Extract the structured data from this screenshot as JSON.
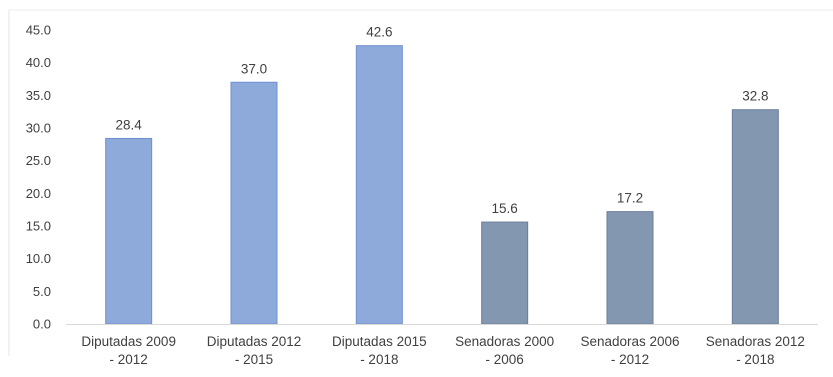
{
  "chart_data": {
    "type": "bar",
    "categories": [
      [
        "Diputadas 2009",
        "- 2012"
      ],
      [
        "Diputadas 2012",
        "- 2015"
      ],
      [
        "Diputadas 2015",
        "- 2018"
      ],
      [
        "Senadoras 2000",
        "- 2006"
      ],
      [
        "Senadoras 2006",
        "- 2012"
      ],
      [
        "Senadoras 2012",
        "- 2018"
      ]
    ],
    "values": [
      28.4,
      37.0,
      42.6,
      15.6,
      17.2,
      32.8
    ],
    "value_labels": [
      "28.4",
      "37.0",
      "42.6",
      "15.6",
      "17.2",
      "32.8"
    ],
    "y_ticks": [
      "0.0",
      "5.0",
      "10.0",
      "15.0",
      "20.0",
      "25.0",
      "30.0",
      "35.0",
      "40.0",
      "45.0"
    ],
    "ylim": [
      0,
      45
    ],
    "grid": false,
    "bar_colors": [
      "#8eaadb",
      "#8eaadb",
      "#8eaadb",
      "#8497b0",
      "#8497b0",
      "#8497b0"
    ],
    "bar_edge_colors": [
      "#6f8fcf",
      "#6f8fcf",
      "#6f8fcf",
      "#6b7f99",
      "#6b7f99",
      "#6b7f99"
    ],
    "axis_color": "#d9d9d9",
    "text_color": "#404040"
  }
}
